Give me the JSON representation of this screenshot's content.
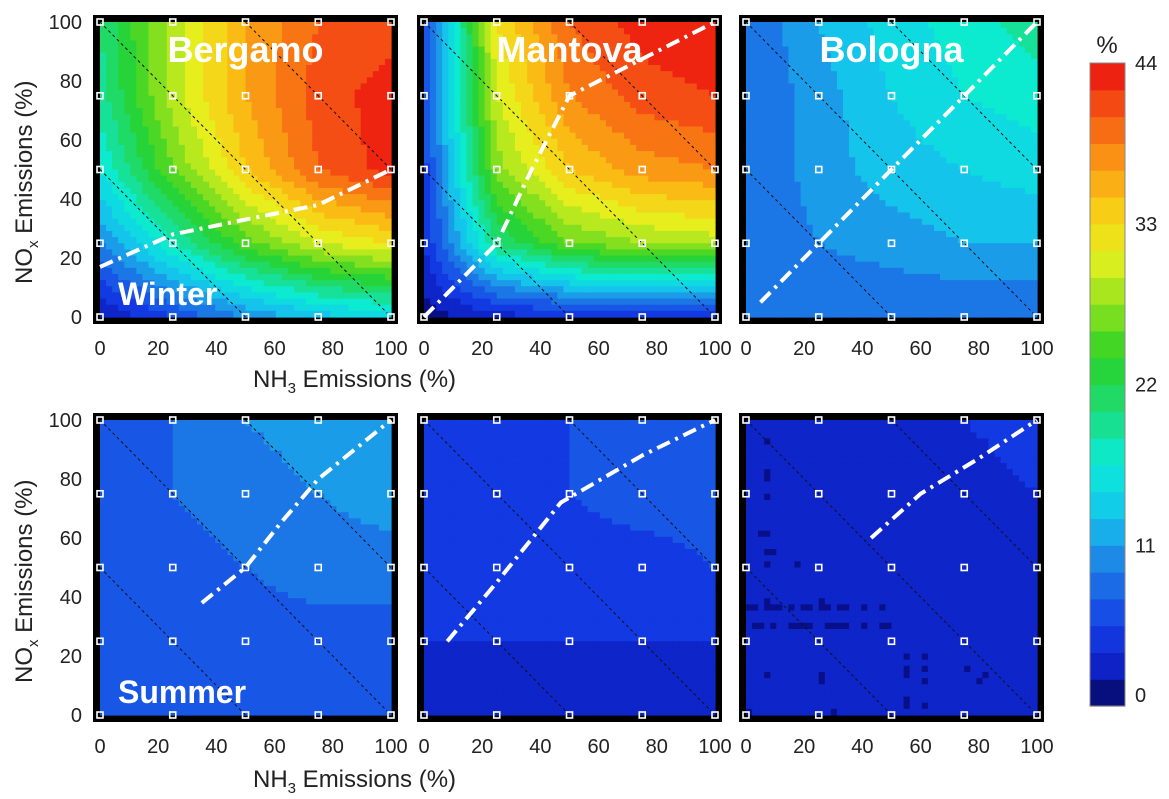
{
  "chart_data": {
    "type": "heatmap",
    "description_axes": {
      "xlabel_main": "NH",
      "xlabel_sub": "3",
      "xlabel_tail": " Emissions (%)",
      "ylabel_main": "NO",
      "ylabel_sub": "x",
      "ylabel_tail": " Emissions (%)",
      "xticks": [
        0,
        20,
        40,
        60,
        80,
        100
      ],
      "yticks": [
        0,
        20,
        40,
        60,
        80,
        100
      ],
      "xlim": [
        0,
        100
      ],
      "ylim": [
        0,
        100
      ]
    },
    "colorbar": {
      "unit_label": "%",
      "ticks": [
        0,
        11,
        22,
        33,
        44
      ],
      "range": [
        0,
        44
      ]
    },
    "grid_x": [
      0,
      25,
      50,
      75,
      100
    ],
    "grid_y": [
      0,
      25,
      50,
      75,
      100
    ],
    "panels": [
      {
        "id": "winter-bergamo",
        "city": "Bergamo",
        "season": "Winter",
        "season_label": "Winter",
        "values": [
          [
            2,
            6,
            10,
            13,
            15
          ],
          [
            10,
            18,
            25,
            30,
            32
          ],
          [
            16,
            26,
            34,
            40,
            43
          ],
          [
            19,
            29,
            36,
            41,
            43
          ],
          [
            20,
            29,
            36,
            40,
            41
          ]
        ],
        "ridge_line": [
          [
            0,
            17
          ],
          [
            25,
            28
          ],
          [
            50,
            33
          ],
          [
            75,
            38
          ],
          [
            100,
            50
          ]
        ]
      },
      {
        "id": "winter-mantova",
        "city": "Mantova",
        "season": "Winter",
        "season_label": "",
        "values": [
          [
            1,
            3,
            4,
            5,
            5
          ],
          [
            4,
            20,
            26,
            28,
            29
          ],
          [
            5,
            27,
            34,
            37,
            38
          ],
          [
            6,
            30,
            38,
            41,
            42
          ],
          [
            6,
            32,
            40,
            43,
            44
          ]
        ],
        "ridge_line": [
          [
            0,
            0
          ],
          [
            25,
            25
          ],
          [
            37,
            50
          ],
          [
            50,
            75
          ],
          [
            100,
            100
          ]
        ]
      },
      {
        "id": "winter-bologna",
        "city": "Bologna",
        "season": "Winter",
        "season_label": "",
        "values": [
          [
            8,
            8,
            8,
            8,
            8
          ],
          [
            8,
            10,
            11,
            12,
            12
          ],
          [
            8,
            11,
            13,
            14,
            15
          ],
          [
            8,
            11,
            14,
            16,
            17
          ],
          [
            8,
            12,
            15,
            17,
            19
          ]
        ],
        "ridge_line": [
          [
            5,
            5
          ],
          [
            25,
            25
          ],
          [
            50,
            50
          ],
          [
            75,
            75
          ],
          [
            100,
            100
          ]
        ]
      },
      {
        "id": "summer-bergamo",
        "city": "Bergamo",
        "season": "Summer",
        "season_label": "Summer",
        "values": [
          [
            6,
            6,
            6,
            6,
            6
          ],
          [
            7,
            7,
            7,
            7,
            7
          ],
          [
            7,
            7,
            8,
            9,
            9
          ],
          [
            7,
            8,
            9,
            10,
            11
          ],
          [
            7,
            8,
            10,
            11,
            12
          ]
        ],
        "ridge_line": [
          [
            35,
            38
          ],
          [
            50,
            50
          ],
          [
            62,
            65
          ],
          [
            75,
            80
          ],
          [
            100,
            100
          ]
        ]
      },
      {
        "id": "summer-mantova",
        "city": "Mantova",
        "season": "Summer",
        "season_label": "",
        "values": [
          [
            2,
            2,
            2,
            2,
            3
          ],
          [
            4,
            4,
            4,
            4,
            4
          ],
          [
            4,
            5,
            5,
            5,
            6
          ],
          [
            4,
            5,
            6,
            7,
            7
          ],
          [
            4,
            5,
            6,
            7,
            8
          ]
        ],
        "ridge_line": [
          [
            8,
            25
          ],
          [
            25,
            45
          ],
          [
            47,
            72
          ],
          [
            75,
            88
          ],
          [
            100,
            100
          ]
        ]
      },
      {
        "id": "summer-bologna",
        "city": "Bologna",
        "season": "Summer",
        "season_label": "",
        "values": [
          [
            2,
            2,
            2,
            2,
            2
          ],
          [
            2,
            2,
            2,
            2,
            2
          ],
          [
            2,
            2,
            2,
            3,
            3
          ],
          [
            2,
            2,
            3,
            3,
            4
          ],
          [
            2,
            2,
            3,
            4,
            5
          ]
        ],
        "ridge_line": [
          [
            43,
            60
          ],
          [
            60,
            75
          ],
          [
            80,
            87
          ],
          [
            100,
            100
          ]
        ]
      }
    ]
  }
}
